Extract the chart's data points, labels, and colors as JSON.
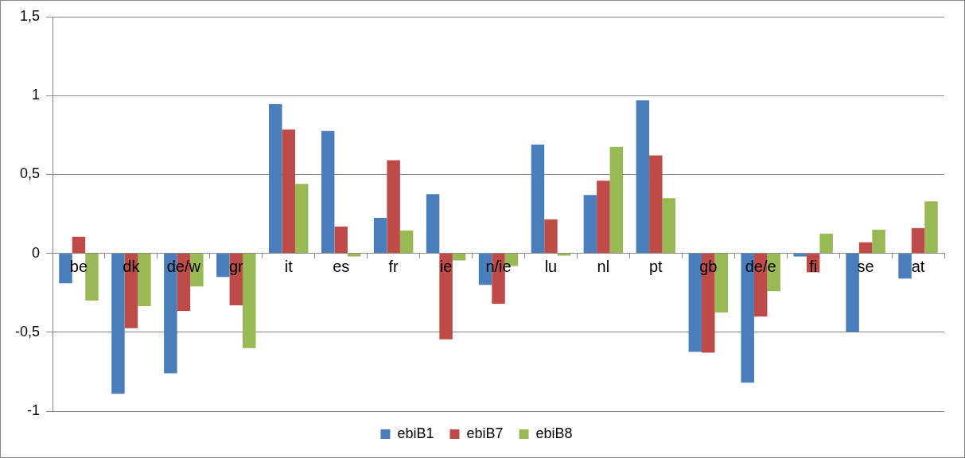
{
  "chart_data": {
    "type": "bar",
    "categories": [
      "be",
      "dk",
      "de/w",
      "gr",
      "it",
      "es",
      "fr",
      "ie",
      "n/ie",
      "lu",
      "nl",
      "pt",
      "gb",
      "de/e",
      "fi",
      "se",
      "at"
    ],
    "series": [
      {
        "name": "ebiB1",
        "color": "#4a7ebb",
        "values": [
          -0.19,
          -0.89,
          -0.76,
          -0.15,
          0.945,
          0.775,
          0.225,
          0.375,
          -0.2,
          0.69,
          0.37,
          0.97,
          -0.625,
          -0.82,
          -0.02,
          -0.5,
          -0.16
        ]
      },
      {
        "name": "ebiB7",
        "color": "#be4b48",
        "values": [
          0.105,
          -0.475,
          -0.365,
          -0.33,
          0.785,
          0.17,
          0.59,
          -0.545,
          -0.32,
          0.215,
          0.46,
          0.62,
          -0.63,
          -0.4,
          -0.12,
          0.07,
          0.16
        ]
      },
      {
        "name": "ebiB8",
        "color": "#98b954",
        "values": [
          -0.3,
          -0.335,
          -0.21,
          -0.6,
          0.44,
          -0.02,
          0.145,
          -0.045,
          -0.08,
          -0.015,
          0.675,
          0.35,
          -0.375,
          -0.24,
          0.125,
          0.15,
          0.33
        ]
      }
    ],
    "ylim": [
      -1,
      1.5
    ],
    "yticks": [
      {
        "value": -1,
        "label": "-1"
      },
      {
        "value": -0.5,
        "label": "-0,5"
      },
      {
        "value": 0,
        "label": "0"
      },
      {
        "value": 0.5,
        "label": "0,5"
      },
      {
        "value": 1,
        "label": "1"
      },
      {
        "value": 1.5,
        "label": "1,5"
      }
    ],
    "grid": "y",
    "legend": "bottom"
  }
}
